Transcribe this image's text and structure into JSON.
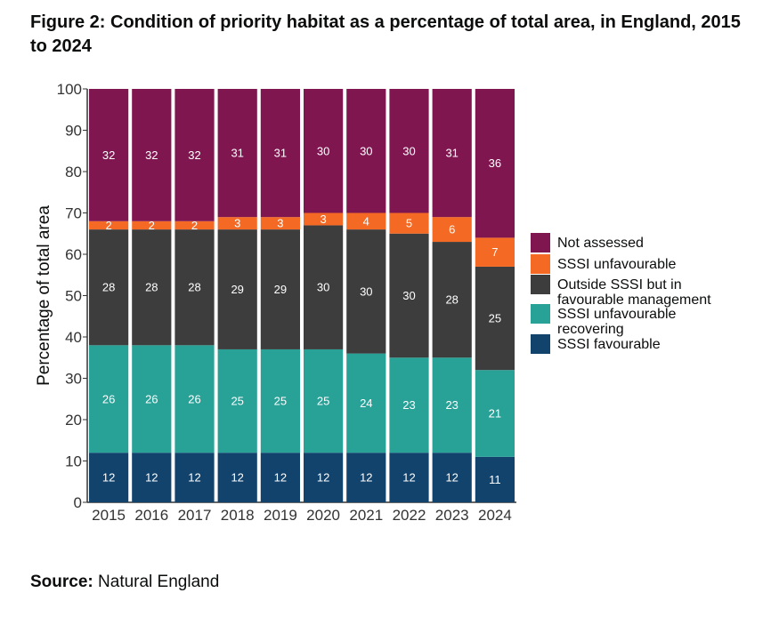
{
  "figure": {
    "title": "Figure 2: Condition of priority habitat as a percentage of total area, in England, 2015 to 2024"
  },
  "source": {
    "label": "Source:",
    "value": "Natural England"
  },
  "chart_data": {
    "type": "bar",
    "stacked": true,
    "title": "",
    "xlabel": "",
    "ylabel": "Percentage of total area",
    "ylim": [
      0,
      100
    ],
    "yticks": [
      0,
      10,
      20,
      30,
      40,
      50,
      60,
      70,
      80,
      90,
      100
    ],
    "grid": false,
    "legend_position": "right",
    "categories": [
      "2015",
      "2016",
      "2017",
      "2018",
      "2019",
      "2020",
      "2021",
      "2022",
      "2023",
      "2024"
    ],
    "series": [
      {
        "name": "SSSI favourable",
        "color": "#12436d",
        "values": [
          12,
          12,
          12,
          12,
          12,
          12,
          12,
          12,
          12,
          11
        ]
      },
      {
        "name": "SSSI unfavourable recovering",
        "color": "#28a197",
        "values": [
          26,
          26,
          26,
          25,
          25,
          25,
          24,
          23,
          23,
          21
        ]
      },
      {
        "name": "Outside SSSI but in favourable management",
        "color": "#3d3d3d",
        "values": [
          28,
          28,
          28,
          29,
          29,
          30,
          30,
          30,
          28,
          25
        ]
      },
      {
        "name": "SSSI unfavourable",
        "color": "#f46a25",
        "values": [
          2,
          2,
          2,
          3,
          3,
          3,
          4,
          5,
          6,
          7
        ]
      },
      {
        "name": "Not assessed",
        "color": "#801650",
        "values": [
          32,
          32,
          32,
          31,
          31,
          30,
          30,
          30,
          31,
          36
        ]
      }
    ],
    "legend_lines": [
      [
        "Not assessed"
      ],
      [
        "SSSI unfavourable"
      ],
      [
        "Outside SSSI but in",
        "favourable management"
      ],
      [
        "SSSI unfavourable",
        "recovering"
      ],
      [
        "SSSI favourable"
      ]
    ]
  }
}
